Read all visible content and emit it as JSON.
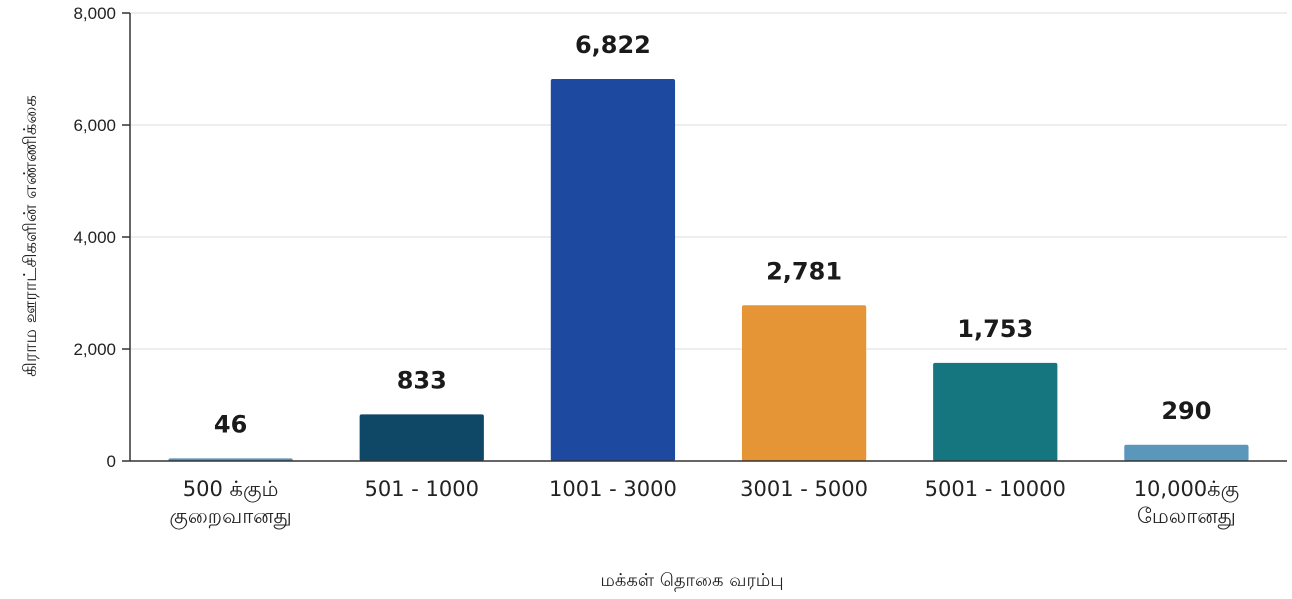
{
  "chart_data": {
    "type": "bar",
    "categories": [
      [
        "500 க்கும்",
        "குறைவானது"
      ],
      [
        "501 - 1000"
      ],
      [
        "1001 - 3000"
      ],
      [
        "3001 - 5000"
      ],
      [
        "5001 - 10000"
      ],
      [
        "10,000க்கு",
        "மேலானது"
      ]
    ],
    "values": [
      46,
      833,
      6822,
      2781,
      1753,
      290
    ],
    "data_labels": [
      "46",
      "833",
      "6,822",
      "2,781",
      "1,753",
      "290"
    ],
    "colors": [
      "#5b8fb8",
      "#0e4866",
      "#1e49a0",
      "#e59436",
      "#16767f",
      "#5a97bb"
    ],
    "ylabel": "கிராம ஊராட்சிகளின் எண்ணிக்கை",
    "xlabel": "மக்கள் தொகை வரம்பு",
    "ylim": [
      0,
      8000
    ],
    "yticks": [
      0,
      2000,
      4000,
      6000,
      8000
    ],
    "ytick_labels": [
      "0",
      "2,000",
      "4,000",
      "6,000",
      "8,000"
    ],
    "grid": true,
    "legend": "none"
  }
}
